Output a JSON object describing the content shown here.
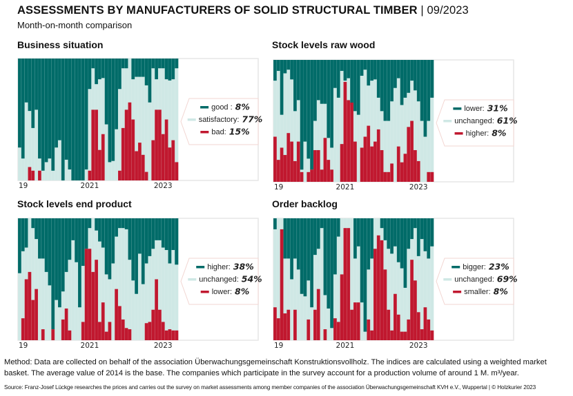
{
  "header": {
    "title": "ASSESSMENTS BY MANUFACTURERS OF SOLID STRUCTURAL TIMBER",
    "title_separator": " | ",
    "date": "09/2023",
    "subtitle": "Month-on-month comparison"
  },
  "colors": {
    "top": "#006b68",
    "middle": "#cfe8e5",
    "bottom": "#c0182f"
  },
  "chart_data": [
    {
      "type": "bar",
      "stacked": "100%",
      "title": "Business situation",
      "x_tick_labels": [
        "19",
        "2021",
        "2023"
      ],
      "ylim": [
        0,
        100
      ],
      "legend_placement": "right",
      "legend": [
        {
          "label": "good :",
          "value": "8%"
        },
        {
          "label": "satisfactory:",
          "value": "77%"
        },
        {
          "label": "bad:",
          "value": "15%"
        }
      ],
      "series": [
        {
          "name": "good",
          "values": [
            73,
            82,
            36,
            43,
            57,
            42,
            82,
            92,
            85,
            82,
            92,
            73,
            67,
            100,
            83,
            91,
            100,
            100,
            100,
            100,
            91,
            25,
            8,
            21,
            17,
            16,
            54,
            85,
            84,
            58,
            25,
            8,
            8,
            0,
            17,
            15,
            15,
            15,
            22,
            36,
            8,
            17,
            8,
            8,
            17,
            18,
            17,
            8
          ]
        },
        {
          "name": "bad",
          "values": [
            0,
            0,
            0,
            11,
            8,
            0,
            8,
            0,
            0,
            0,
            0,
            0,
            0,
            0,
            0,
            0,
            0,
            0,
            0,
            0,
            0,
            8,
            58,
            58,
            25,
            38,
            0,
            0,
            0,
            0,
            8,
            43,
            58,
            64,
            50,
            24,
            31,
            21,
            7,
            0,
            33,
            58,
            58,
            38,
            50,
            27,
            33,
            15
          ]
        }
      ]
    },
    {
      "type": "bar",
      "stacked": "100%",
      "title": "Stock levels raw wood",
      "x_tick_labels": [
        "19",
        "2021",
        "2023"
      ],
      "ylim": [
        0,
        100
      ],
      "legend_placement": "right",
      "legend": [
        {
          "label": "lower:",
          "value": "31%"
        },
        {
          "label": "unchanged:",
          "value": "61%"
        },
        {
          "label": "higher:",
          "value": "8%"
        }
      ],
      "series": [
        {
          "name": "lower",
          "values": [
            17,
            9,
            45,
            11,
            8,
            16,
            42,
            33,
            90,
            67,
            81,
            90,
            50,
            33,
            36,
            36,
            64,
            72,
            23,
            31,
            9,
            17,
            15,
            37,
            42,
            45,
            13,
            8,
            21,
            17,
            16,
            31,
            42,
            50,
            50,
            34,
            23,
            15,
            37,
            31,
            27,
            17,
            25,
            34,
            50,
            63,
            50,
            31
          ]
        },
        {
          "name": "higher",
          "values": [
            37,
            18,
            28,
            22,
            40,
            33,
            17,
            33,
            8,
            0,
            8,
            10,
            26,
            26,
            10,
            36,
            18,
            10,
            0,
            0,
            31,
            82,
            67,
            65,
            33,
            0,
            28,
            37,
            46,
            29,
            33,
            43,
            26,
            8,
            8,
            15,
            0,
            29,
            16,
            23,
            45,
            50,
            26,
            17,
            0,
            0,
            8,
            8
          ]
        }
      ]
    },
    {
      "type": "bar",
      "stacked": "100%",
      "title": "Stock levels end product",
      "x_tick_labels": [
        "19",
        "2021",
        "2023"
      ],
      "ylim": [
        0,
        100
      ],
      "legend_placement": "right",
      "legend": [
        {
          "label": "higher:",
          "value": "38%"
        },
        {
          "label": "unchanged:",
          "value": "54%"
        },
        {
          "label": "lower:",
          "value": "8%"
        }
      ],
      "series": [
        {
          "name": "higher",
          "values": [
            45,
            27,
            24,
            0,
            8,
            17,
            33,
            33,
            44,
            55,
            91,
            67,
            73,
            60,
            44,
            34,
            18,
            36,
            73,
            39,
            25,
            8,
            0,
            10,
            19,
            24,
            46,
            50,
            37,
            15,
            8,
            8,
            9,
            34,
            51,
            62,
            29,
            54,
            37,
            31,
            25,
            18,
            18,
            24,
            26,
            37,
            26,
            38
          ]
        },
        {
          "name": "lower",
          "values": [
            0,
            18,
            50,
            56,
            33,
            42,
            0,
            9,
            0,
            0,
            9,
            0,
            0,
            17,
            26,
            8,
            0,
            0,
            0,
            15,
            75,
            75,
            56,
            66,
            15,
            31,
            7,
            15,
            0,
            42,
            28,
            17,
            10,
            9,
            0,
            0,
            0,
            0,
            14,
            15,
            25,
            50,
            25,
            15,
            8,
            9,
            8,
            8
          ]
        }
      ]
    },
    {
      "type": "bar",
      "stacked": "100%",
      "title": "Order backlog",
      "x_tick_labels": [
        "19",
        "2021",
        "2023"
      ],
      "ylim": [
        0,
        100
      ],
      "legend_placement": "right",
      "legend": [
        {
          "label": "bigger:",
          "value": "23%"
        },
        {
          "label": "unchanged:",
          "value": "69%"
        },
        {
          "label": "smaller:",
          "value": "8%"
        }
      ],
      "series": [
        {
          "name": "bigger",
          "values": [
            9,
            0,
            0,
            33,
            33,
            50,
            33,
            42,
            62,
            64,
            51,
            73,
            30,
            25,
            8,
            63,
            74,
            90,
            46,
            15,
            0,
            0,
            0,
            0,
            33,
            23,
            69,
            93,
            42,
            33,
            0,
            0,
            8,
            18,
            25,
            29,
            23,
            36,
            41,
            57,
            25,
            17,
            8,
            31,
            17,
            27,
            33,
            23
          ]
        },
        {
          "name": "smaller",
          "values": [
            27,
            18,
            91,
            22,
            25,
            0,
            25,
            0,
            0,
            0,
            17,
            0,
            25,
            42,
            0,
            9,
            0,
            0,
            18,
            15,
            54,
            92,
            92,
            25,
            31,
            31,
            0,
            0,
            17,
            8,
            75,
            86,
            82,
            58,
            25,
            8,
            38,
            21,
            7,
            7,
            17,
            66,
            49,
            23,
            9,
            27,
            17,
            8
          ]
        }
      ]
    }
  ],
  "footer": {
    "method": "Method: Data are collected on behalf of the association Überwachungsgemeinschaft Konstruktionsvollholz. The indices are calculated using a weighted market basket. The average value of 2014 is the base. The companies which participate in the survey account for a production volume of around 1 M. m³/year.",
    "source": "Source: Franz-Josef Lückge researches the prices and carries out the survey on market assessments among member companies of the association Überwachungsgemeinschaft KVH e.V., Wuppertal | © Holzkurier 2023"
  }
}
